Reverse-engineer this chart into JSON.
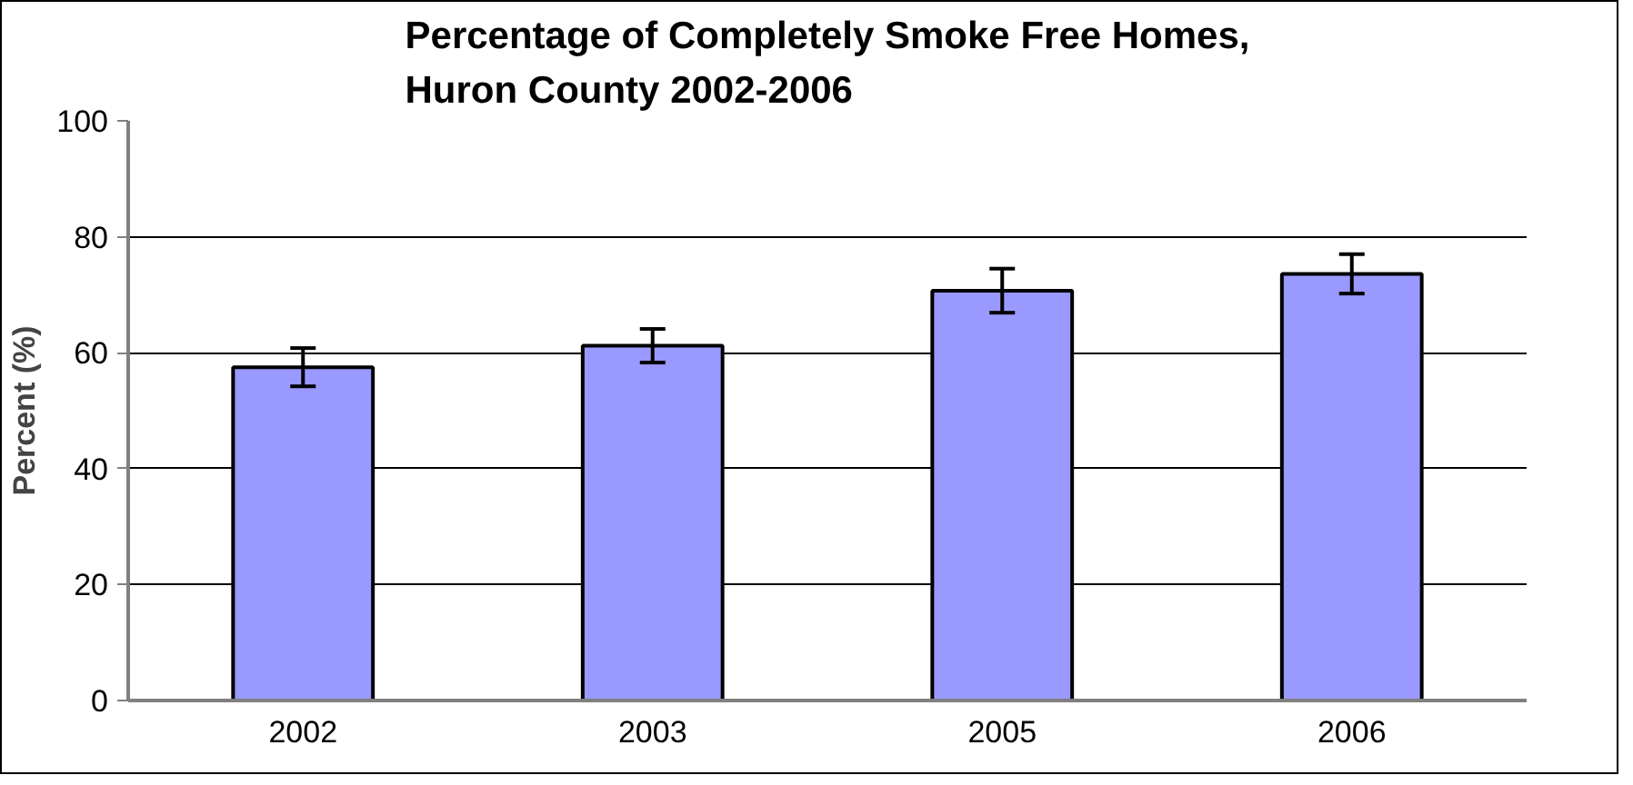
{
  "chart_data": {
    "type": "bar",
    "title": "Percentage of Completely Smoke Free Homes,\nHuron County 2002-2006",
    "ylabel": "Percent (%)",
    "categories": [
      "2002",
      "2003",
      "2005",
      "2006"
    ],
    "values": [
      57.5,
      61.2,
      70.7,
      73.6
    ],
    "errors": [
      3.3,
      2.9,
      3.8,
      3.4
    ],
    "color": "#9999ff",
    "ylim": [
      0,
      100
    ],
    "yticks": [
      0,
      20,
      40,
      60,
      80,
      100
    ],
    "grid": "y"
  }
}
